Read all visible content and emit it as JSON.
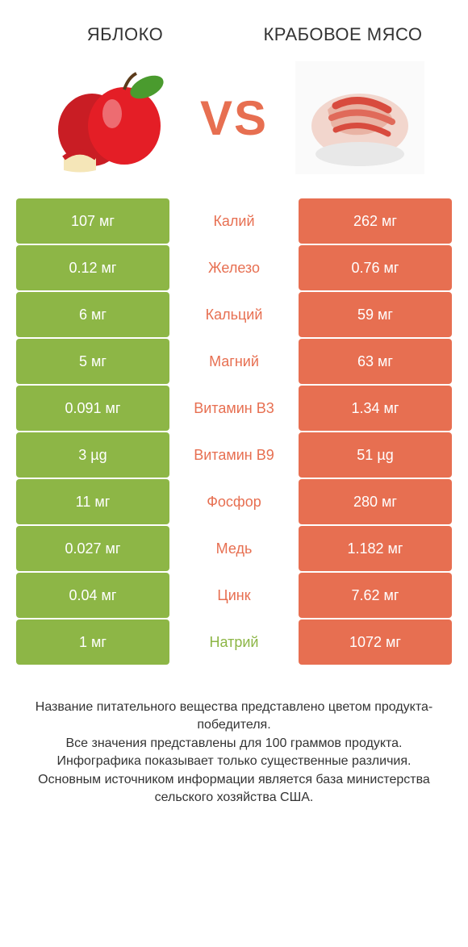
{
  "colors": {
    "green": "#8db646",
    "orange": "#e76f51",
    "bg": "#ffffff",
    "text": "#333333"
  },
  "header": {
    "left_title": "Яблоко",
    "right_title": "Крабовое мясо",
    "vs": "VS"
  },
  "rows": [
    {
      "label": "Калий",
      "left": "107 мг",
      "right": "262 мг",
      "winner": "right"
    },
    {
      "label": "Железо",
      "left": "0.12 мг",
      "right": "0.76 мг",
      "winner": "right"
    },
    {
      "label": "Кальций",
      "left": "6 мг",
      "right": "59 мг",
      "winner": "right"
    },
    {
      "label": "Магний",
      "left": "5 мг",
      "right": "63 мг",
      "winner": "right"
    },
    {
      "label": "Витамин B3",
      "left": "0.091 мг",
      "right": "1.34 мг",
      "winner": "right"
    },
    {
      "label": "Витамин B9",
      "left": "3 µg",
      "right": "51 µg",
      "winner": "right"
    },
    {
      "label": "Фосфор",
      "left": "11 мг",
      "right": "280 мг",
      "winner": "right"
    },
    {
      "label": "Медь",
      "left": "0.027 мг",
      "right": "1.182 мг",
      "winner": "right"
    },
    {
      "label": "Цинк",
      "left": "0.04 мг",
      "right": "7.62 мг",
      "winner": "right"
    },
    {
      "label": "Натрий",
      "left": "1 мг",
      "right": "1072 мг",
      "winner": "left"
    }
  ],
  "footer_lines": [
    "Название питательного вещества представлено цветом продукта-победителя.",
    "Все значения представлены для 100 граммов продукта.",
    "Инфографика показывает только существенные различия.",
    "Основным источником информации является база министерства сельского хозяйства США."
  ]
}
